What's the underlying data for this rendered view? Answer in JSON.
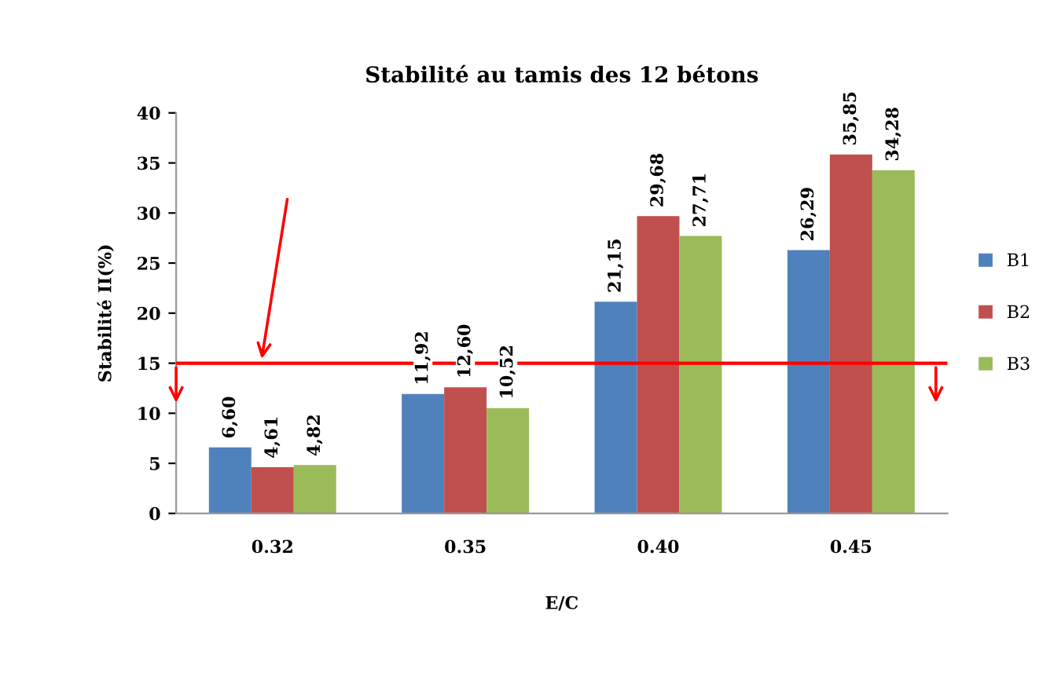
{
  "chart_data": {
    "type": "bar",
    "title": "Stabilité au tamis des 12 bétons",
    "xlabel": "E/C",
    "ylabel": "Stabilité II(%)",
    "categories": [
      "0.32",
      "0.35",
      "0.40",
      "0.45"
    ],
    "series": [
      {
        "name": "B1",
        "color": "#4f81bd",
        "values": [
          6.6,
          11.92,
          21.15,
          26.29
        ],
        "value_labels": [
          "6,60",
          "11,92",
          "21,15",
          "26,29"
        ]
      },
      {
        "name": "B2",
        "color": "#c0504d",
        "values": [
          4.61,
          12.6,
          29.68,
          35.85
        ],
        "value_labels": [
          "4,61",
          "12,60",
          "29,68",
          "35,85"
        ]
      },
      {
        "name": "B3",
        "color": "#9bbb59",
        "values": [
          4.82,
          10.52,
          27.71,
          34.28
        ],
        "value_labels": [
          "4,82",
          "10,52",
          "27,71",
          "34,28"
        ]
      }
    ],
    "ylim": [
      0,
      40
    ],
    "yticks": [
      0,
      5,
      10,
      15,
      20,
      25,
      30,
      35,
      40
    ],
    "grid": false,
    "legend": "right",
    "ref_lines": [
      {
        "axis": "y",
        "value": 15,
        "color": "#ff0000",
        "line_style": "solid"
      }
    ]
  }
}
